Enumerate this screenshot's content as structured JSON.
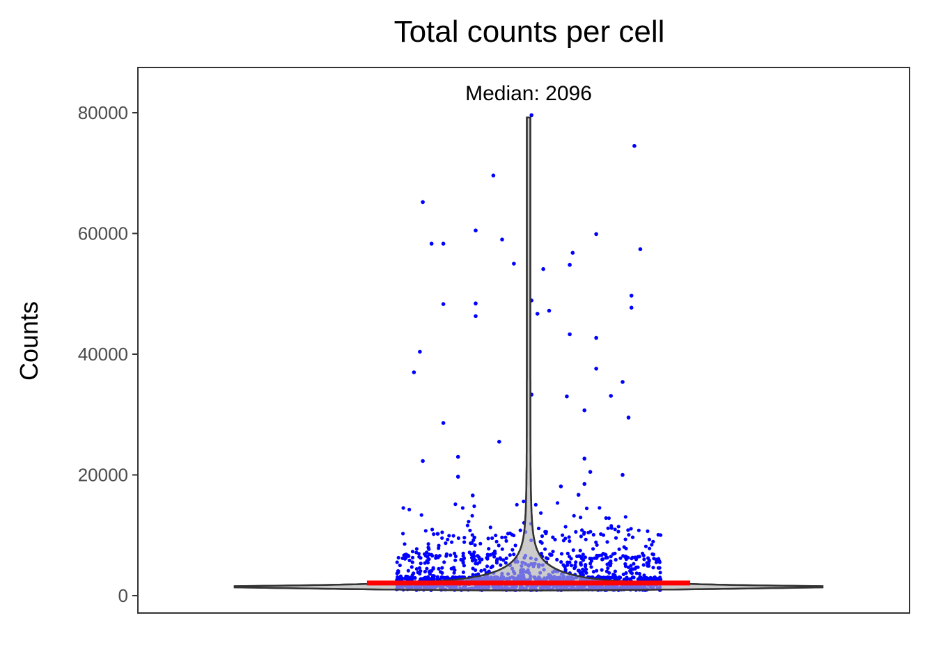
{
  "chart_data": {
    "type": "violin",
    "title": "Total counts per cell",
    "xlabel": "",
    "ylabel": "Counts",
    "y_ticks": [
      0,
      20000,
      40000,
      60000,
      80000
    ],
    "ylim": [
      -3000,
      87500
    ],
    "grid": false,
    "annotation": "Median: 2096",
    "median": 2096,
    "colors": {
      "violin_fill": "#cccccc",
      "violin_outline": "#333333",
      "points": "#0000ff",
      "median_line": "#ff0000",
      "panel_border": "#333333"
    },
    "outlier_points": [
      {
        "x": -0.39,
        "y": 37000
      },
      {
        "x": -0.37,
        "y": 40400
      },
      {
        "x": -0.36,
        "y": 65200
      },
      {
        "x": -0.33,
        "y": 58300
      },
      {
        "x": -0.29,
        "y": 58300
      },
      {
        "x": -0.29,
        "y": 48300
      },
      {
        "x": -0.29,
        "y": 28600
      },
      {
        "x": -0.24,
        "y": 23000
      },
      {
        "x": -0.18,
        "y": 60500
      },
      {
        "x": -0.18,
        "y": 48400
      },
      {
        "x": -0.18,
        "y": 46300
      },
      {
        "x": -0.12,
        "y": 69600
      },
      {
        "x": -0.1,
        "y": 25500
      },
      {
        "x": -0.09,
        "y": 59000
      },
      {
        "x": -0.05,
        "y": 55000
      },
      {
        "x": 0.01,
        "y": 79600
      },
      {
        "x": 0.01,
        "y": 48900
      },
      {
        "x": 0.01,
        "y": 33300
      },
      {
        "x": 0.03,
        "y": 46700
      },
      {
        "x": 0.05,
        "y": 54100
      },
      {
        "x": 0.07,
        "y": 47200
      },
      {
        "x": 0.13,
        "y": 33000
      },
      {
        "x": 0.14,
        "y": 43300
      },
      {
        "x": 0.14,
        "y": 54800
      },
      {
        "x": 0.15,
        "y": 56800
      },
      {
        "x": 0.19,
        "y": 30700
      },
      {
        "x": 0.23,
        "y": 42700
      },
      {
        "x": 0.23,
        "y": 37600
      },
      {
        "x": 0.23,
        "y": 59900
      },
      {
        "x": 0.28,
        "y": 33100
      },
      {
        "x": 0.32,
        "y": 35400
      },
      {
        "x": 0.34,
        "y": 29500
      },
      {
        "x": 0.36,
        "y": 74500
      },
      {
        "x": 0.35,
        "y": 49700
      },
      {
        "x": 0.35,
        "y": 47700
      },
      {
        "x": 0.38,
        "y": 57400
      },
      {
        "x": -0.24,
        "y": 19700
      },
      {
        "x": -0.19,
        "y": 16600
      },
      {
        "x": 0.19,
        "y": 22700
      },
      {
        "x": 0.21,
        "y": 20500
      },
      {
        "x": 0.32,
        "y": 20000
      },
      {
        "x": 0.11,
        "y": 18100
      },
      {
        "x": -0.36,
        "y": 22300
      },
      {
        "x": 0.17,
        "y": 16700
      },
      {
        "x": 0.19,
        "y": 18500
      }
    ]
  }
}
